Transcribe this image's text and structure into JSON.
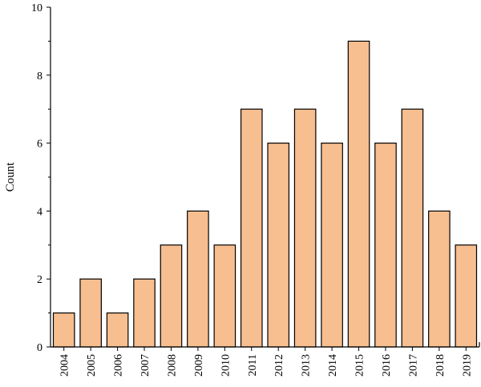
{
  "chart_data": {
    "type": "bar",
    "title": "",
    "xlabel": "",
    "ylabel": "Count",
    "categories": [
      "2004",
      "2005",
      "2006",
      "2007",
      "2008",
      "2009",
      "2010",
      "2011",
      "2012",
      "2013",
      "2014",
      "2015",
      "2016",
      "2017",
      "2018",
      "2019"
    ],
    "values": [
      1,
      2,
      1,
      2,
      3,
      4,
      3,
      7,
      6,
      7,
      6,
      9,
      6,
      7,
      4,
      3
    ],
    "ylim": [
      0,
      10
    ],
    "yticks": [
      0,
      2,
      4,
      6,
      8,
      10
    ],
    "grid": false,
    "colors": {
      "bar_fill": "#F7BE8F",
      "bar_stroke": "#000000",
      "axis": "#000000"
    }
  }
}
